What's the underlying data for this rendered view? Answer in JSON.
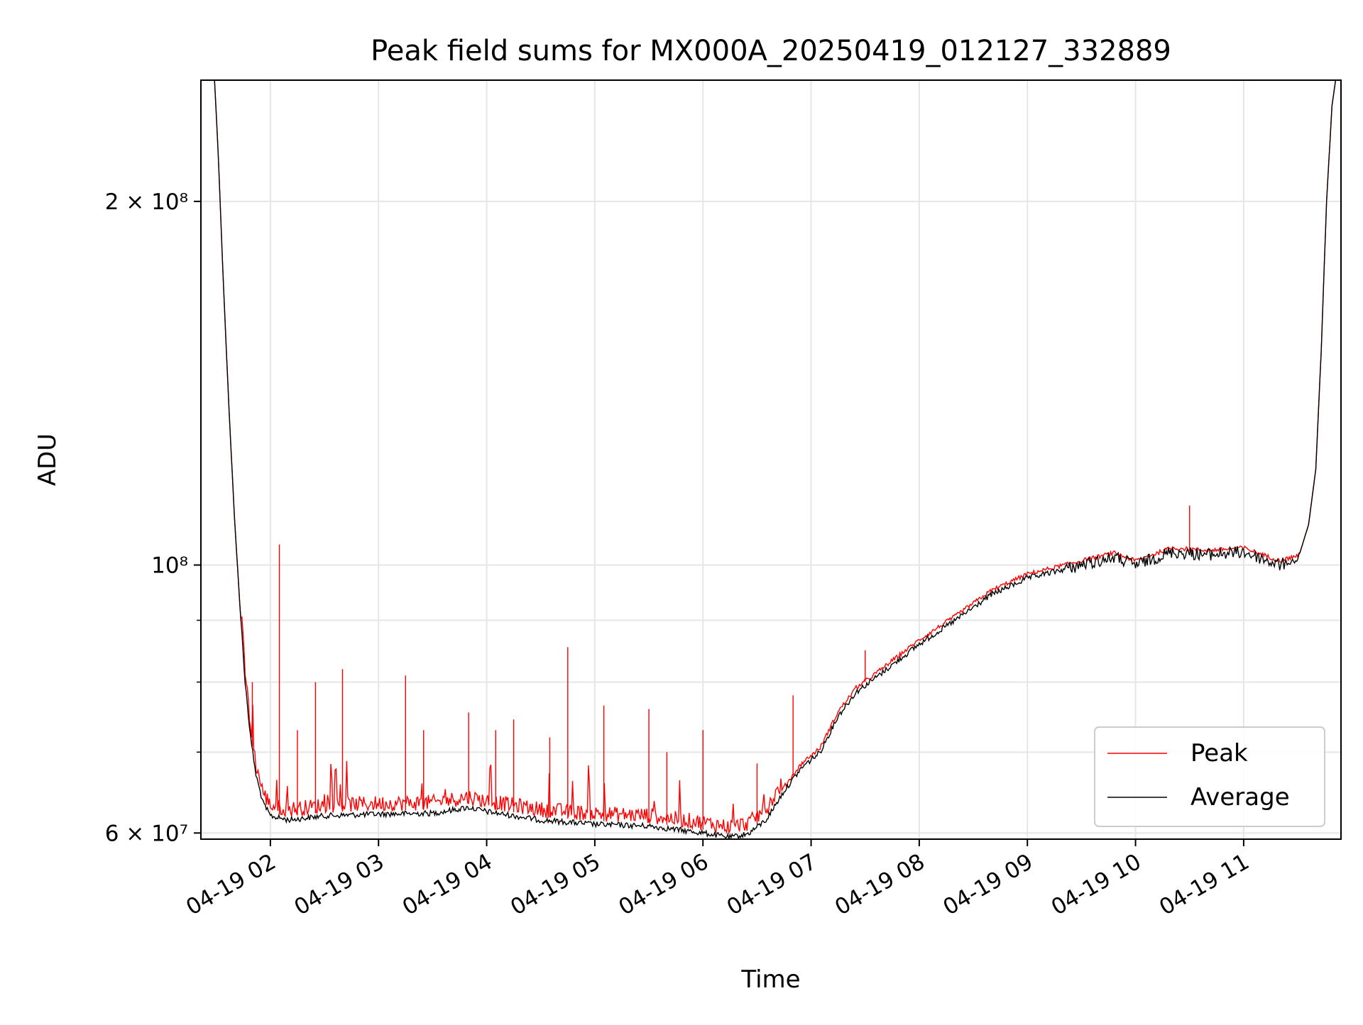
{
  "chart_data": {
    "type": "line",
    "title": "Peak field sums for MX000A_20250419_012127_332889",
    "xlabel": "Time",
    "ylabel": "ADU",
    "xaxis": {
      "kind": "time",
      "range": [
        "2025-04-19T01:21:27",
        "2025-04-19T11:54:00"
      ],
      "ticks": [
        {
          "value": "2025-04-19T02:00",
          "label": "04-19 02"
        },
        {
          "value": "2025-04-19T03:00",
          "label": "04-19 03"
        },
        {
          "value": "2025-04-19T04:00",
          "label": "04-19 04"
        },
        {
          "value": "2025-04-19T05:00",
          "label": "04-19 05"
        },
        {
          "value": "2025-04-19T06:00",
          "label": "04-19 06"
        },
        {
          "value": "2025-04-19T07:00",
          "label": "04-19 07"
        },
        {
          "value": "2025-04-19T08:00",
          "label": "04-19 08"
        },
        {
          "value": "2025-04-19T09:00",
          "label": "04-19 09"
        },
        {
          "value": "2025-04-19T10:00",
          "label": "04-19 10"
        },
        {
          "value": "2025-04-19T11:00",
          "label": "04-19 11"
        }
      ]
    },
    "yaxis": {
      "scale": "log",
      "range": [
        59300000,
        252000000
      ],
      "major_ticks": [
        {
          "value": 60000000,
          "label": "6 × 10⁷"
        },
        {
          "value": 100000000,
          "label": "10⁸"
        },
        {
          "value": 200000000,
          "label": "2 × 10⁸"
        }
      ],
      "minor_ticks": [
        70000000,
        80000000,
        90000000
      ]
    },
    "grid": true,
    "legend": {
      "position": "lower-right",
      "entries": [
        "Peak",
        "Average"
      ]
    },
    "series": [
      {
        "name": "Average",
        "color": "#000000",
        "points": [
          [
            "2025-04-19T01:21",
            252000000
          ],
          [
            "2025-04-19T01:29",
            252000000
          ],
          [
            "2025-04-19T01:31",
            220000000
          ],
          [
            "2025-04-19T01:34",
            170000000
          ],
          [
            "2025-04-19T01:37",
            135000000
          ],
          [
            "2025-04-19T01:40",
            110000000
          ],
          [
            "2025-04-19T01:43",
            93000000
          ],
          [
            "2025-04-19T01:46",
            80000000
          ],
          [
            "2025-04-19T01:49",
            72000000
          ],
          [
            "2025-04-19T01:52",
            67000000
          ],
          [
            "2025-04-19T01:56",
            63500000
          ],
          [
            "2025-04-19T02:00",
            62000000
          ],
          [
            "2025-04-19T02:10",
            61500000
          ],
          [
            "2025-04-19T02:30",
            62000000
          ],
          [
            "2025-04-19T03:00",
            62200000
          ],
          [
            "2025-04-19T03:30",
            62300000
          ],
          [
            "2025-04-19T03:50",
            63000000
          ],
          [
            "2025-04-19T04:00",
            62500000
          ],
          [
            "2025-04-19T04:30",
            61500000
          ],
          [
            "2025-04-19T05:00",
            61000000
          ],
          [
            "2025-04-19T05:30",
            60800000
          ],
          [
            "2025-04-19T06:00",
            60000000
          ],
          [
            "2025-04-19T06:15",
            59500000
          ],
          [
            "2025-04-19T06:25",
            59900000
          ],
          [
            "2025-04-19T06:35",
            61500000
          ],
          [
            "2025-04-19T06:45",
            65000000
          ],
          [
            "2025-04-19T06:55",
            68000000
          ],
          [
            "2025-04-19T07:05",
            70000000
          ],
          [
            "2025-04-19T07:15",
            75000000
          ],
          [
            "2025-04-19T07:25",
            78500000
          ],
          [
            "2025-04-19T07:35",
            80500000
          ],
          [
            "2025-04-19T08:00",
            86000000
          ],
          [
            "2025-04-19T08:20",
            90000000
          ],
          [
            "2025-04-19T08:40",
            94500000
          ],
          [
            "2025-04-19T09:00",
            97500000
          ],
          [
            "2025-04-19T09:30",
            100000000
          ],
          [
            "2025-04-19T09:48",
            101500000
          ],
          [
            "2025-04-19T10:00",
            100000000
          ],
          [
            "2025-04-19T10:20",
            102500000
          ],
          [
            "2025-04-19T10:40",
            102000000
          ],
          [
            "2025-04-19T11:00",
            102500000
          ],
          [
            "2025-04-19T11:20",
            100000000
          ],
          [
            "2025-04-19T11:30",
            101000000
          ],
          [
            "2025-04-19T11:36",
            108000000
          ],
          [
            "2025-04-19T11:40",
            120000000
          ],
          [
            "2025-04-19T11:43",
            150000000
          ],
          [
            "2025-04-19T11:46",
            200000000
          ],
          [
            "2025-04-19T11:49",
            240000000
          ],
          [
            "2025-04-19T11:51",
            252000000
          ],
          [
            "2025-04-19T11:54",
            252000000
          ]
        ]
      },
      {
        "name": "Peak",
        "color": "#ff0000",
        "spikes": [
          [
            "2025-04-19T01:50",
            80000000
          ],
          [
            "2025-04-19T02:05",
            104000000
          ],
          [
            "2025-04-19T02:15",
            73000000
          ],
          [
            "2025-04-19T02:25",
            80000000
          ],
          [
            "2025-04-19T02:40",
            82000000
          ],
          [
            "2025-04-19T03:15",
            81000000
          ],
          [
            "2025-04-19T03:25",
            73000000
          ],
          [
            "2025-04-19T03:50",
            75500000
          ],
          [
            "2025-04-19T04:05",
            73000000
          ],
          [
            "2025-04-19T04:15",
            74500000
          ],
          [
            "2025-04-19T04:35",
            72000000
          ],
          [
            "2025-04-19T04:45",
            85500000
          ],
          [
            "2025-04-19T05:05",
            76500000
          ],
          [
            "2025-04-19T05:30",
            76000000
          ],
          [
            "2025-04-19T05:40",
            70000000
          ],
          [
            "2025-04-19T06:00",
            73000000
          ],
          [
            "2025-04-19T06:30",
            68500000
          ],
          [
            "2025-04-19T06:50",
            78000000
          ],
          [
            "2025-04-19T07:30",
            85000000
          ],
          [
            "2025-04-19T10:30",
            112000000
          ]
        ]
      }
    ]
  }
}
